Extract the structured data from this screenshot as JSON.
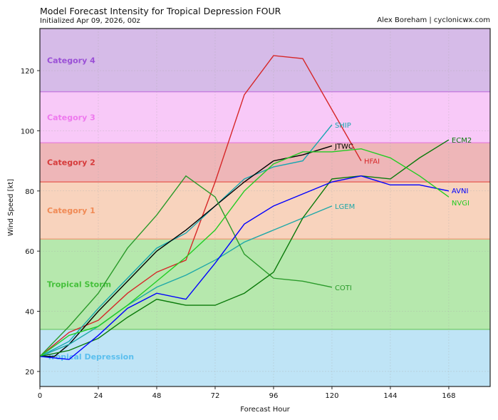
{
  "title": "Model Forecast Intensity for Tropical Depression FOUR",
  "subtitle": "Initialized Apr 09, 2026, 00z",
  "credit": "Alex Boreham | cyclonicwx.com",
  "chart_data": {
    "type": "line",
    "xlabel": "Forecast Hour",
    "ylabel": "Wind Speed [kt]",
    "xlim": [
      0,
      185
    ],
    "ylim": [
      15,
      134
    ],
    "xticks": [
      0,
      24,
      48,
      72,
      96,
      120,
      144,
      168
    ],
    "yticks": [
      20,
      40,
      60,
      80,
      100,
      120
    ],
    "grid": true,
    "bands": [
      {
        "name": "Tropical Depression",
        "min": 15,
        "max": 34,
        "fill": "#bfe4f6",
        "edge": "#7ccbe8",
        "label_color": "#5bbfee"
      },
      {
        "name": "Tropical Storm",
        "min": 34,
        "max": 64,
        "fill": "#b6e8ad",
        "edge": "#7fd07a",
        "label_color": "#44c03a"
      },
      {
        "name": "Category 1",
        "min": 64,
        "max": 83,
        "fill": "#f8d3bd",
        "edge": "#e8a57f",
        "label_color": "#f08a55"
      },
      {
        "name": "Category 2",
        "min": 83,
        "max": 96,
        "fill": "#eeb6b8",
        "edge": "#e86a60",
        "label_color": "#d63a3a"
      },
      {
        "name": "Category 3",
        "min": 96,
        "max": 113,
        "fill": "#f8c9f8",
        "edge": "#e889d8",
        "label_color": "#ee78ee"
      },
      {
        "name": "Category 4",
        "min": 113,
        "max": 134,
        "fill": "#d6bbe8",
        "edge": "#c77fe0",
        "label_color": "#9a4fd6"
      }
    ],
    "series": [
      {
        "name": "HFAI",
        "color": "#d62728",
        "x": [
          0,
          12,
          24,
          36,
          48,
          60,
          72,
          84,
          96,
          108,
          120,
          132
        ],
        "y": [
          25,
          33,
          37,
          46,
          53,
          57,
          83,
          112,
          125,
          124,
          107,
          90
        ]
      },
      {
        "name": "SHIP",
        "color": "#17a6b0",
        "x": [
          0,
          12,
          24,
          36,
          48,
          60,
          72,
          84,
          96,
          108,
          120
        ],
        "y": [
          25,
          30,
          41,
          51,
          61,
          66,
          75,
          84,
          88,
          90,
          102
        ]
      },
      {
        "name": "JTWC",
        "color": "#000000",
        "x": [
          0,
          6,
          12,
          24,
          36,
          48,
          60,
          72,
          84,
          96,
          108,
          120
        ],
        "y": [
          25,
          25,
          29,
          40,
          50,
          60,
          67,
          75,
          83,
          90,
          92,
          95
        ]
      },
      {
        "name": "LGEM",
        "color": "#1fa8a8",
        "x": [
          0,
          12,
          24,
          36,
          48,
          60,
          72,
          84,
          96,
          108,
          120
        ],
        "y": [
          25,
          29,
          35,
          42,
          48,
          52,
          57,
          63,
          67,
          71,
          75
        ]
      },
      {
        "name": "COTI",
        "color": "#2a9a2a",
        "x": [
          0,
          12,
          24,
          36,
          48,
          60,
          72,
          84,
          96,
          108,
          120
        ],
        "y": [
          25,
          35,
          46,
          61,
          72,
          85,
          78,
          59,
          51,
          50,
          48
        ]
      },
      {
        "name": "ECM2",
        "color": "#0a7a0a",
        "x": [
          0,
          12,
          24,
          36,
          48,
          60,
          72,
          84,
          96,
          108,
          120,
          132,
          144,
          156,
          168
        ],
        "y": [
          25,
          27,
          31,
          38,
          44,
          42,
          42,
          46,
          53,
          71,
          84,
          85,
          84,
          91,
          97
        ]
      },
      {
        "name": "AVNI",
        "color": "#0000ff",
        "x": [
          0,
          6,
          12,
          24,
          36,
          48,
          60,
          72,
          84,
          96,
          108,
          120,
          132,
          144,
          156,
          168
        ],
        "y": [
          25,
          24.5,
          24,
          32,
          41,
          46,
          44,
          56,
          69,
          75,
          79,
          83,
          85,
          82,
          82,
          80
        ]
      },
      {
        "name": "NVGI",
        "color": "#22cc22",
        "x": [
          0,
          12,
          24,
          36,
          48,
          60,
          72,
          84,
          96,
          108,
          120,
          132,
          144,
          156,
          168
        ],
        "y": [
          25,
          32,
          35,
          42,
          50,
          58,
          67,
          80,
          89,
          93,
          93,
          94,
          91,
          85,
          78
        ]
      }
    ]
  }
}
